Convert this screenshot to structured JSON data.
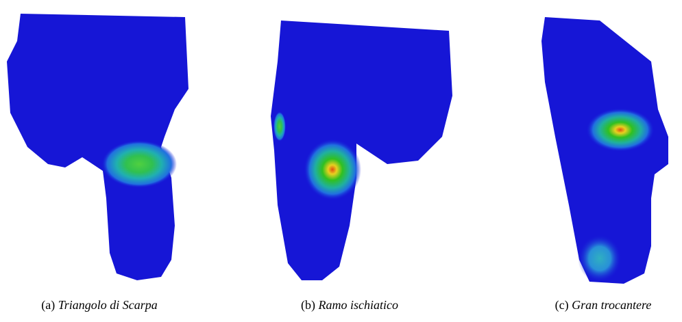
{
  "figures": [
    {
      "label": "(a)",
      "caption": "Triangolo di Scarpa"
    },
    {
      "label": "(b)",
      "caption": "Ramo ischiatico"
    },
    {
      "label": "(c)",
      "caption": "Gran trocantere"
    }
  ]
}
